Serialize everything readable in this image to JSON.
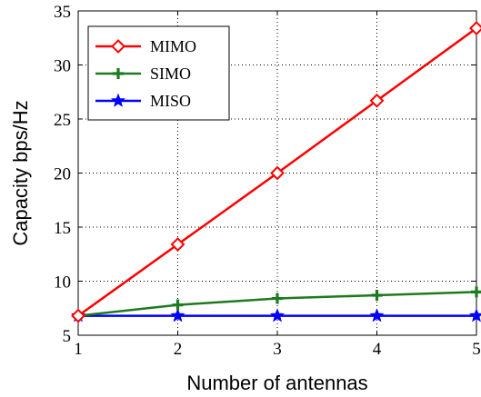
{
  "chart_data": {
    "type": "line",
    "title": "",
    "xlabel": "Number of antennas",
    "ylabel": "Capacity bps/Hz",
    "x": [
      1,
      2,
      3,
      4,
      5
    ],
    "xlim": [
      1,
      5
    ],
    "ylim": [
      5,
      35
    ],
    "xticks": [
      1,
      2,
      3,
      4,
      5
    ],
    "yticks": [
      5,
      10,
      15,
      20,
      25,
      30,
      35
    ],
    "grid": true,
    "legend_position": "top-left",
    "series": [
      {
        "name": "MIMO",
        "values": [
          6.8,
          13.4,
          20.0,
          26.7,
          33.4
        ],
        "color": "#ff0000",
        "marker": "diamond-open"
      },
      {
        "name": "SIMO",
        "values": [
          6.8,
          7.8,
          8.4,
          8.7,
          9.0
        ],
        "color": "#1e7a1e",
        "marker": "plus"
      },
      {
        "name": "MISO",
        "values": [
          6.8,
          6.8,
          6.8,
          6.8,
          6.8
        ],
        "color": "#0000ff",
        "marker": "star"
      }
    ]
  }
}
